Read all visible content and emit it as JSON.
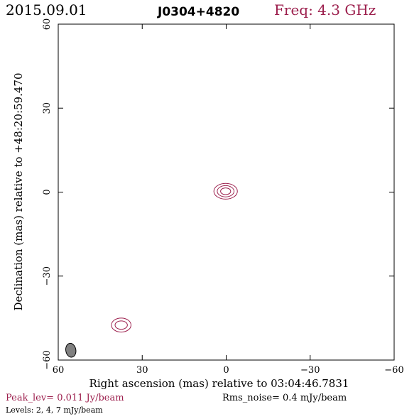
{
  "header": {
    "date": "2015.09.01",
    "source": "J0304+4820",
    "frequency": "Freq: 4.3 GHz"
  },
  "footer": {
    "peak_level": "Peak_lev=  0.011 Jy/beam",
    "rms_noise": "Rms_noise=   0.4 mJy/beam",
    "levels": "Levels:   2,    4,    7 mJy/beam"
  },
  "colors": {
    "contour": "#9c1f4d",
    "beam_fill": "#808080",
    "axis": "#000000"
  },
  "chart_data": {
    "type": "contour",
    "xlabel": "Right ascension (mas) relative to 03:04:46.7831",
    "ylabel": "Declination (mas) relative to +48:20:59.470",
    "xlim": [
      60,
      -60
    ],
    "ylim": [
      -60,
      60
    ],
    "xticks": [
      60,
      30,
      0,
      -30,
      -60
    ],
    "yticks": [
      60,
      30,
      0,
      -30,
      -60
    ],
    "xtick_labels": [
      "60",
      "30",
      "0",
      "−30",
      "−60"
    ],
    "ytick_labels": [
      "60",
      "30",
      "0",
      "−30",
      "−60"
    ],
    "contour_levels_mJy": [
      2,
      4,
      7
    ],
    "components": [
      {
        "x": 0.2,
        "y": 0.3,
        "contours": [
          {
            "rx": 4.2,
            "ry": 2.8
          },
          {
            "rx": 3.0,
            "ry": 2.0
          },
          {
            "rx": 1.8,
            "ry": 1.2
          }
        ]
      },
      {
        "x": 37.5,
        "y": -47.5,
        "contours": [
          {
            "rx": 3.5,
            "ry": 2.5
          },
          {
            "rx": 2.2,
            "ry": 1.5
          }
        ]
      }
    ],
    "beam": {
      "x": 55.5,
      "y": -56.5,
      "major": 5.0,
      "minor": 3.6,
      "pa_deg": 10
    }
  }
}
